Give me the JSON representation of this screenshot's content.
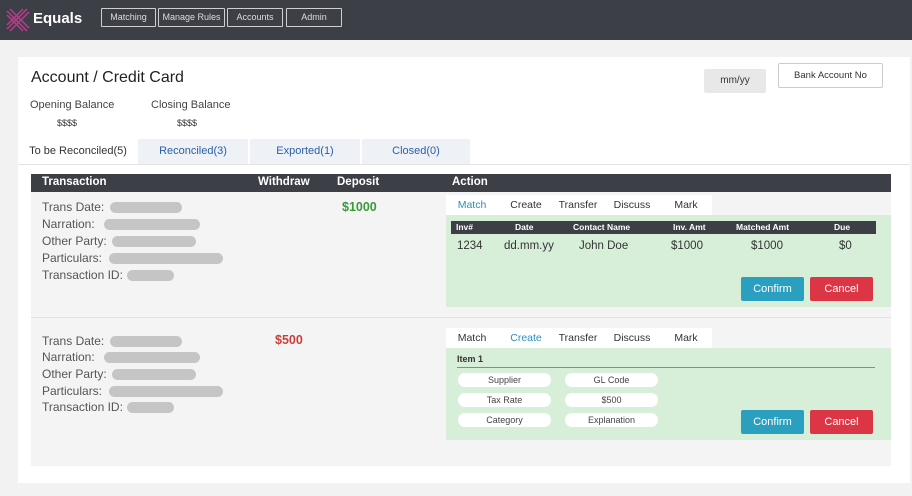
{
  "app": {
    "brand": "Equals",
    "nav": [
      "Matching",
      "Manage Rules",
      "Accounts",
      "Admin"
    ]
  },
  "header": {
    "title": "Account / Credit Card",
    "opening_balance_label": "Opening Balance",
    "opening_balance_value": "$$$$",
    "closing_balance_label": "Closing Balance",
    "closing_balance_value": "$$$$",
    "date_button": "mm/yy",
    "bank_button": "Bank Account No"
  },
  "tabs": [
    "To be Reconciled(5)",
    "Reconciled(3)",
    "Exported(1)",
    "Closed(0)"
  ],
  "table_header": {
    "transaction": "Transaction",
    "withdraw": "Withdraw",
    "deposit": "Deposit",
    "action": "Action"
  },
  "field_labels": {
    "trans_date": "Trans Date:",
    "narration": "Narration:",
    "other_party": "Other Party:",
    "particulars": "Particulars:",
    "transaction_id": "Transaction ID:"
  },
  "action_tabs": [
    "Match",
    "Create",
    "Transfer",
    "Discuss",
    "Mark"
  ],
  "rows": [
    {
      "deposit": "$1000",
      "active_tab": "Match",
      "match_table": {
        "headers": [
          "Inv#",
          "Date",
          "Contact Name",
          "Inv. Amt",
          "Matched Amt",
          "Due"
        ],
        "row": [
          "1234",
          "dd.mm.yy",
          "John Doe",
          "$1000",
          "$1000",
          "$0"
        ]
      },
      "confirm": "Confirm",
      "cancel": "Cancel"
    },
    {
      "withdraw": "$500",
      "active_tab": "Create",
      "item_title": "Item 1",
      "chips": [
        "Supplier",
        "GL Code",
        "Tax Rate",
        "$500",
        "Category",
        "Explanation"
      ],
      "confirm": "Confirm",
      "cancel": "Cancel"
    }
  ],
  "colors": {
    "topbar": "#3c3f45",
    "green_amount": "#3a9a3a",
    "red_amount": "#c9403a",
    "confirm": "#2b9fc0",
    "cancel": "#dc3545",
    "panel": "#d7efd9",
    "active_tab": "#2a8fc4"
  }
}
